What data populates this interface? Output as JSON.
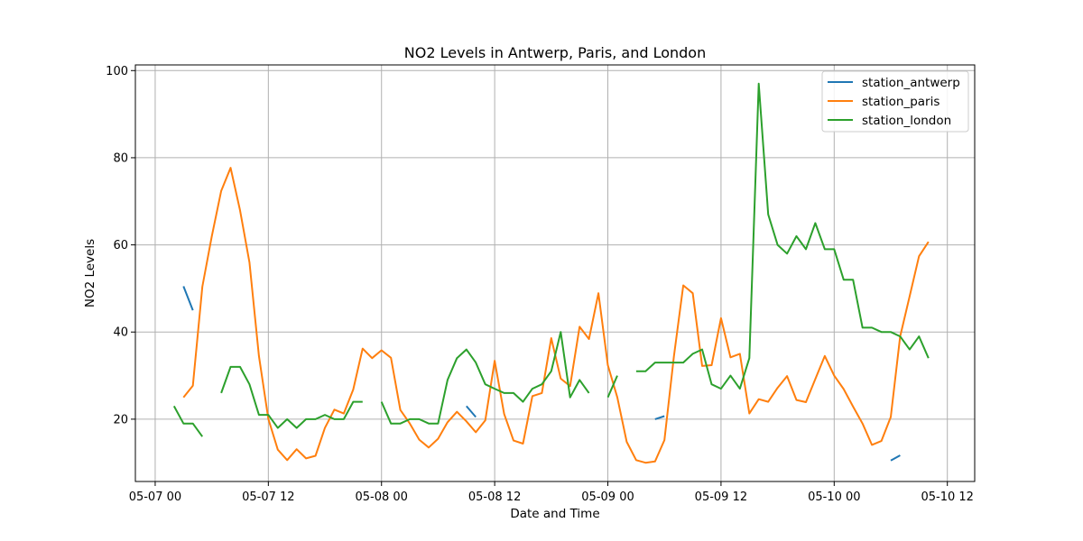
{
  "chart_data": {
    "type": "line",
    "title": "NO2 Levels in Antwerp, Paris, and London",
    "xlabel": "Date and Time",
    "ylabel": "NO2 Levels",
    "grid": true,
    "legend_position": "top-right",
    "x_start": "2019-05-07 02:00",
    "x_step_hours": 1,
    "xlim_hours": [
      -2.1,
      86.9
    ],
    "ylim": [
      5.7,
      101.3
    ],
    "xticks": [
      {
        "label": "05-07 00",
        "hour": 0
      },
      {
        "label": "05-07 12",
        "hour": 12
      },
      {
        "label": "05-08 00",
        "hour": 24
      },
      {
        "label": "05-08 12",
        "hour": 36
      },
      {
        "label": "05-09 00",
        "hour": 48
      },
      {
        "label": "05-09 12",
        "hour": 60
      },
      {
        "label": "05-10 00",
        "hour": 72
      },
      {
        "label": "05-10 12",
        "hour": 84
      }
    ],
    "yticks": [
      20,
      40,
      60,
      80,
      100
    ],
    "series": [
      {
        "name": "station_antwerp",
        "color": "#1f77b4",
        "values": [
          null,
          50.5,
          45.0,
          null,
          null,
          null,
          null,
          null,
          null,
          null,
          null,
          null,
          null,
          null,
          null,
          null,
          null,
          null,
          null,
          null,
          null,
          null,
          null,
          null,
          null,
          null,
          null,
          null,
          null,
          null,
          null,
          23.0,
          20.5,
          null,
          null,
          null,
          null,
          null,
          null,
          null,
          null,
          null,
          null,
          null,
          null,
          null,
          null,
          null,
          null,
          null,
          null,
          20.0,
          20.7,
          null,
          null,
          null,
          null,
          null,
          null,
          null,
          null,
          null,
          null,
          null,
          null,
          null,
          null,
          null,
          null,
          null,
          null,
          null,
          null,
          null,
          null,
          null,
          10.5,
          11.7,
          null,
          null,
          null,
          null,
          null,
          null,
          null,
          null,
          null,
          null
        ]
      },
      {
        "name": "station_paris",
        "color": "#ff7f0e",
        "values": [
          null,
          25.0,
          27.7,
          50.4,
          61.9,
          72.4,
          77.7,
          67.9,
          56.0,
          34.5,
          20.1,
          13.0,
          10.6,
          13.1,
          11.0,
          11.6,
          18.0,
          22.2,
          21.3,
          26.8,
          36.2,
          34.0,
          35.8,
          34.1,
          22.1,
          19.0,
          15.3,
          13.5,
          15.5,
          19.3,
          21.7,
          19.5,
          17.0,
          19.7,
          33.4,
          21.2,
          15.1,
          14.4,
          25.3,
          26.0,
          38.6,
          29.3,
          27.6,
          41.2,
          38.4,
          48.9,
          32.4,
          25.0,
          14.8,
          10.6,
          10.0,
          10.3,
          15.2,
          34.4,
          50.7,
          48.9,
          32.2,
          32.4,
          43.2,
          34.2,
          35.0,
          21.3,
          24.6,
          24.0,
          27.2,
          29.9,
          24.4,
          23.9,
          29.2,
          34.5,
          30.0,
          26.9,
          22.9,
          19.0,
          14.1,
          15.0,
          20.5,
          39.0,
          48.2,
          57.4,
          60.7
        ]
      },
      {
        "name": "station_london",
        "color": "#2ca02c",
        "values": [
          23.0,
          19.0,
          19.0,
          16.0,
          null,
          26.0,
          32.0,
          32.0,
          28.0,
          21.0,
          21.0,
          18.0,
          20.0,
          18.0,
          20.0,
          20.0,
          21.0,
          20.0,
          20.0,
          24.0,
          24.0,
          null,
          24.0,
          19.0,
          19.0,
          20.0,
          20.0,
          19.0,
          19.0,
          29.0,
          34.0,
          36.0,
          33.0,
          28.0,
          27.0,
          26.0,
          26.0,
          24.0,
          27.0,
          28.0,
          31.0,
          40.0,
          25.0,
          29.0,
          26.0,
          null,
          25.0,
          30.0,
          null,
          31.0,
          31.0,
          33.0,
          33.0,
          33.0,
          33.0,
          35.0,
          36.0,
          28.0,
          27.0,
          30.0,
          27.0,
          34.0,
          97.0,
          67.0,
          60.0,
          58.0,
          62.0,
          59.0,
          65.0,
          59.0,
          59.0,
          52.0,
          52.0,
          41.0,
          41.0,
          40.0,
          40.0,
          39.0,
          36.0,
          39.0,
          34.0
        ]
      }
    ]
  }
}
